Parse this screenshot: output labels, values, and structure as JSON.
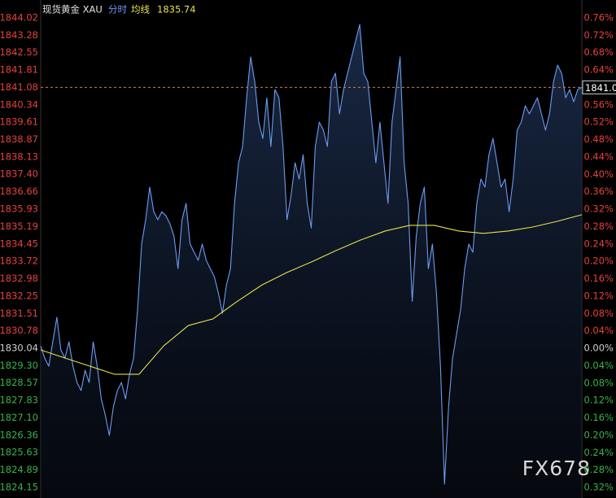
{
  "chart_data": {
    "type": "line",
    "title": "现货黄金 XAU",
    "avg_value": 1835.74,
    "last_price": 1841.08,
    "watermark": "FX678",
    "ylim": [
      1824.15,
      1844.02
    ],
    "yticks": [
      1844.02,
      1843.28,
      1842.55,
      1841.81,
      1841.08,
      1840.34,
      1839.61,
      1838.87,
      1838.13,
      {
        "value": 1837.4,
        "label": "1837.40"
      },
      1836.66,
      1835.93,
      1835.19,
      1834.45,
      1833.72,
      1832.98,
      1832.25,
      1831.51,
      1830.78,
      1830.04,
      {
        "value": 1829.3,
        "label": "1829.30"
      },
      1828.57,
      1827.83,
      {
        "value": 1827.1,
        "label": "1827.10"
      },
      1826.36,
      1825.63,
      1824.89,
      1824.15
    ],
    "y2lim": [
      -0.32,
      0.76
    ],
    "y2ticks": [
      {
        "value": 0.76,
        "label": "0.76%"
      },
      {
        "value": 0.72,
        "label": "0.72%"
      },
      {
        "value": 0.68,
        "label": "0.68%"
      },
      {
        "value": 0.64,
        "label": "0.64%"
      },
      {
        "value": 0.6,
        "label": "0.60%"
      },
      {
        "value": 0.56,
        "label": "0.56%"
      },
      {
        "value": 0.52,
        "label": "0.52%"
      },
      {
        "value": 0.48,
        "label": "0.48%"
      },
      {
        "value": 0.44,
        "label": "0.44%"
      },
      {
        "value": 0.4,
        "label": "0.40%"
      },
      {
        "value": 0.36,
        "label": "0.36%"
      },
      {
        "value": 0.32,
        "label": "0.32%"
      },
      {
        "value": 0.28,
        "label": "0.28%"
      },
      {
        "value": 0.24,
        "label": "0.24%"
      },
      {
        "value": 0.2,
        "label": "0.20%"
      },
      {
        "value": 0.16,
        "label": "0.16%"
      },
      {
        "value": 0.12,
        "label": "0.12%"
      },
      {
        "value": 0.08,
        "label": "0.08%"
      },
      {
        "value": 0.04,
        "label": "0.04%"
      },
      {
        "value": 0,
        "label": "0.00%"
      },
      {
        "value": -0.04,
        "label": "0.04%"
      },
      {
        "value": -0.08,
        "label": "0.08%"
      },
      {
        "value": -0.12,
        "label": "0.12%"
      },
      {
        "value": -0.16,
        "label": "0.16%"
      },
      {
        "value": -0.2,
        "label": "0.20%"
      },
      {
        "value": -0.24,
        "label": "0.24%"
      },
      {
        "value": -0.28,
        "label": "0.28%"
      },
      {
        "value": -0.32,
        "label": "0.32%"
      }
    ],
    "series": [
      {
        "name": "分时",
        "color": "#6b9cf2",
        "values": [
          1830.14,
          1829.62,
          1829.28,
          1830.31,
          1831.35,
          1829.97,
          1829.62,
          1830.31,
          1829.28,
          1828.59,
          1828.25,
          1829.11,
          1828.59,
          1830.31,
          1829.28,
          1827.9,
          1827.21,
          1826.35,
          1827.56,
          1828.25,
          1828.59,
          1827.9,
          1828.94,
          1829.62,
          1831.69,
          1834.45,
          1835.48,
          1836.86,
          1835.82,
          1835.48,
          1835.82,
          1835.65,
          1835.31,
          1834.79,
          1833.41,
          1835.48,
          1836.17,
          1834.45,
          1834.1,
          1833.76,
          1834.45,
          1833.76,
          1833.41,
          1833.07,
          1832.38,
          1831.52,
          1832.72,
          1833.41,
          1836.17,
          1837.89,
          1838.58,
          1840.64,
          1842.37,
          1841.33,
          1839.61,
          1838.92,
          1840.64,
          1838.58,
          1840.99,
          1840.64,
          1838.58,
          1835.48,
          1836.51,
          1837.89,
          1837.2,
          1838.23,
          1836.17,
          1835.13,
          1838.58,
          1839.61,
          1839.27,
          1838.58,
          1841.33,
          1841.68,
          1839.96,
          1840.99,
          1841.68,
          1842.37,
          1843.06,
          1843.74,
          1841.68,
          1841.33,
          1839.61,
          1837.89,
          1839.61,
          1837.89,
          1836.17,
          1839.61,
          1840.99,
          1842.37,
          1837.89,
          1836.17,
          1832.03,
          1834.79,
          1836.17,
          1836.86,
          1833.41,
          1834.45,
          1832.38,
          1829.28,
          1824.29,
          1827.56,
          1829.62,
          1830.66,
          1831.69,
          1833.41,
          1834.45,
          1834.1,
          1836.17,
          1837.2,
          1836.86,
          1838.23,
          1838.92,
          1837.89,
          1836.86,
          1837.2,
          1835.82,
          1837.2,
          1839.27,
          1839.61,
          1840.3,
          1839.96,
          1840.3,
          1840.64,
          1839.96,
          1839.27,
          1839.96,
          1841.33,
          1842.02,
          1841.68,
          1840.64,
          1840.99,
          1840.47,
          1840.99,
          1841.08
        ]
      },
      {
        "name": "均线",
        "color": "#e6e04a",
        "values": [
          1829.97,
          1829.62,
          1829.28,
          1828.94,
          1828.94,
          1830.14,
          1831.0,
          1831.28,
          1832.03,
          1832.72,
          1833.24,
          1833.69,
          1834.17,
          1834.62,
          1835.0,
          1835.24,
          1835.24,
          1835.0,
          1834.9,
          1835.0,
          1835.17,
          1835.41,
          1835.69
        ]
      }
    ]
  }
}
